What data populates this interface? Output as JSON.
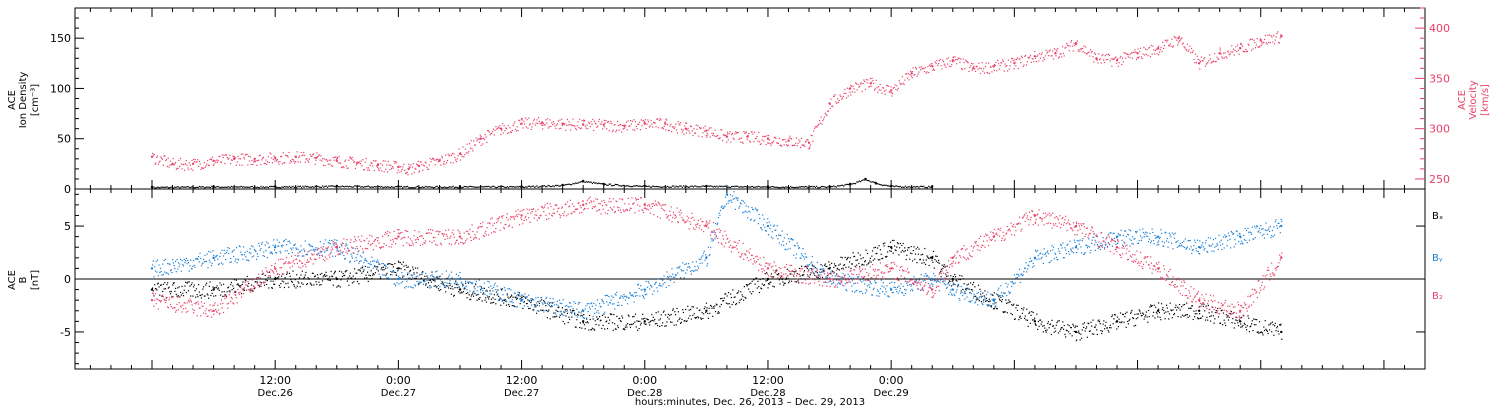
{
  "chart_data": [
    {
      "type": "scatter",
      "panel": "top",
      "ylabel": [
        "ACE",
        "Ion Density",
        "[cm⁻³]"
      ],
      "ylabel_right": [
        "ACE",
        "Velocity",
        "[km/s]"
      ],
      "yticks": [
        "0",
        "50",
        "100",
        "150"
      ],
      "yticks_right": [
        "250",
        "300",
        "350",
        "400"
      ],
      "ylim": [
        0,
        180
      ],
      "ylim_right": [
        240,
        420
      ],
      "series": [
        {
          "name": "",
          "axis": "left",
          "color": "#000000",
          "points": [
            [
              0,
              2
            ],
            [
              6,
              2.5
            ],
            [
              12,
              2.5
            ],
            [
              18,
              3
            ],
            [
              24,
              2.5
            ],
            [
              30,
              2.5
            ],
            [
              36,
              2.5
            ],
            [
              40,
              4
            ],
            [
              42,
              8
            ],
            [
              44,
              5
            ],
            [
              48,
              3
            ],
            [
              54,
              3
            ],
            [
              60,
              2.5
            ],
            [
              66,
              2.5
            ],
            [
              68,
              5
            ],
            [
              69.5,
              10
            ],
            [
              70.5,
              6
            ],
            [
              72,
              3
            ],
            [
              76,
              2.5
            ]
          ]
        },
        {
          "name": "",
          "axis": "right",
          "color": "#e8406a",
          "points": [
            [
              0,
              272
            ],
            [
              2,
              265
            ],
            [
              4,
              265
            ],
            [
              6,
              268
            ],
            [
              8,
              270
            ],
            [
              10,
              270
            ],
            [
              12,
              271
            ],
            [
              14,
              272
            ],
            [
              16,
              271
            ],
            [
              18,
              268
            ],
            [
              20,
              266
            ],
            [
              22,
              264
            ],
            [
              24,
              262
            ],
            [
              25,
              260
            ],
            [
              26,
              263
            ],
            [
              28,
              268
            ],
            [
              30,
              275
            ],
            [
              32,
              290
            ],
            [
              34,
              300
            ],
            [
              36,
              305
            ],
            [
              38,
              306
            ],
            [
              40,
              305
            ],
            [
              42,
              304
            ],
            [
              44,
              304
            ],
            [
              46,
              303
            ],
            [
              48,
              305
            ],
            [
              50,
              305
            ],
            [
              52,
              300
            ],
            [
              54,
              298
            ],
            [
              56,
              292
            ],
            [
              58,
              292
            ],
            [
              60,
              290
            ],
            [
              62,
              288
            ],
            [
              64,
              286
            ],
            [
              66,
              325
            ],
            [
              68,
              340
            ],
            [
              70,
              345
            ],
            [
              72,
              338
            ],
            [
              74,
              355
            ],
            [
              76,
              362
            ],
            [
              78,
              368
            ],
            [
              80,
              360
            ],
            [
              82,
              362
            ],
            [
              84,
              365
            ],
            [
              86,
              372
            ],
            [
              88,
              375
            ],
            [
              90,
              385
            ],
            [
              92,
              370
            ],
            [
              94,
              368
            ],
            [
              96,
              375
            ],
            [
              98,
              380
            ],
            [
              100,
              390
            ],
            [
              102,
              365
            ],
            [
              104,
              375
            ],
            [
              106,
              380
            ],
            [
              108,
              388
            ],
            [
              110,
              392
            ]
          ]
        }
      ]
    },
    {
      "type": "scatter",
      "panel": "bottom",
      "ylabel": [
        "ACE",
        "B",
        "[nT]"
      ],
      "yticks": [
        "-5",
        "0",
        "5"
      ],
      "ylim": [
        -8.5,
        8.5
      ],
      "legend": [
        "Bₓ",
        "Bᵧ",
        "B₂"
      ],
      "legend_position": "right",
      "series": [
        {
          "name": "Bₓ",
          "color": "#000000",
          "points": [
            [
              0,
              -1
            ],
            [
              6,
              -1
            ],
            [
              12,
              0
            ],
            [
              18,
              0
            ],
            [
              24,
              1
            ],
            [
              30,
              -1
            ],
            [
              36,
              -2
            ],
            [
              42,
              -4
            ],
            [
              48,
              -4
            ],
            [
              54,
              -3
            ],
            [
              60,
              0
            ],
            [
              66,
              1
            ],
            [
              72,
              3
            ],
            [
              76,
              2
            ],
            [
              78,
              0
            ],
            [
              82,
              -2
            ],
            [
              86,
              -4
            ],
            [
              90,
              -5
            ],
            [
              94,
              -4
            ],
            [
              98,
              -3
            ],
            [
              102,
              -3
            ],
            [
              106,
              -4
            ],
            [
              110,
              -5
            ]
          ]
        },
        {
          "name": "Bᵧ",
          "color": "#1a7fd6",
          "points": [
            [
              0,
              1
            ],
            [
              6,
              2
            ],
            [
              12,
              3
            ],
            [
              18,
              3
            ],
            [
              24,
              0
            ],
            [
              30,
              0
            ],
            [
              36,
              -2
            ],
            [
              42,
              -3
            ],
            [
              48,
              -1
            ],
            [
              54,
              2
            ],
            [
              56,
              8
            ],
            [
              60,
              5
            ],
            [
              66,
              0
            ],
            [
              72,
              -1
            ],
            [
              76,
              0
            ],
            [
              78,
              -1
            ],
            [
              82,
              -2
            ],
            [
              86,
              2
            ],
            [
              90,
              3
            ],
            [
              94,
              4
            ],
            [
              98,
              4
            ],
            [
              102,
              3
            ],
            [
              106,
              4
            ],
            [
              110,
              5
            ]
          ]
        },
        {
          "name": "B₂",
          "color": "#e8406a",
          "points": [
            [
              0,
              -2
            ],
            [
              6,
              -3
            ],
            [
              12,
              1
            ],
            [
              18,
              3
            ],
            [
              24,
              4
            ],
            [
              30,
              4
            ],
            [
              36,
              6
            ],
            [
              42,
              7
            ],
            [
              48,
              7
            ],
            [
              54,
              5
            ],
            [
              60,
              1
            ],
            [
              66,
              0
            ],
            [
              72,
              1
            ],
            [
              76,
              -1
            ],
            [
              78,
              2
            ],
            [
              82,
              4
            ],
            [
              86,
              6
            ],
            [
              90,
              5
            ],
            [
              94,
              3
            ],
            [
              98,
              1
            ],
            [
              102,
              -2
            ],
            [
              106,
              -3
            ],
            [
              110,
              2
            ]
          ]
        }
      ]
    }
  ],
  "x_axis": {
    "tick_labels": [
      {
        "time": "12:00",
        "date": "Dec.26"
      },
      {
        "time": "0:00",
        "date": "Dec.27"
      },
      {
        "time": "12:00",
        "date": "Dec.27"
      },
      {
        "time": "0:00",
        "date": "Dec.28"
      },
      {
        "time": "12:00",
        "date": "Dec.28"
      },
      {
        "time": "0:00",
        "date": "Dec.29"
      }
    ],
    "label": "hours:minutes, Dec. 26, 2013 – Dec. 29, 2013",
    "xlim_hours": [
      -7.5,
      124
    ]
  }
}
